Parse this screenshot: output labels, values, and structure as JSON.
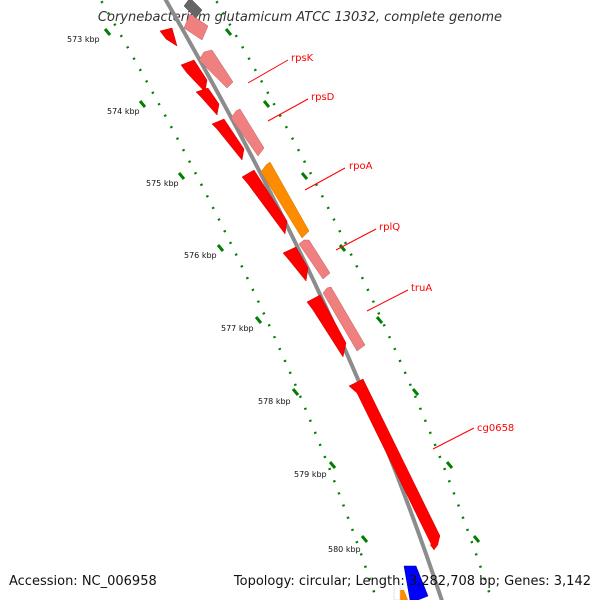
{
  "map": {
    "title": "Corynebacterium glutamicum ATCC 13032, complete genome",
    "accession_label": "Accession: NC_006958",
    "summary_label": "Topology: circular; Length: 3,282,708 bp; Genes: 3,142"
  },
  "scale": {
    "tick_labels": [
      "573 kbp",
      "574 kbp",
      "575 kbp",
      "576 kbp",
      "577 kbp",
      "578 kbp",
      "579 kbp",
      "580 kbp"
    ]
  },
  "genes": {
    "labels": [
      "rpsK",
      "rpsD",
      "rpoA",
      "rplQ",
      "truA",
      "cg0658"
    ]
  },
  "colors": {
    "backbone": "#8c8c8c",
    "gene_red": "#ff0000",
    "gene_pink": "#f08080",
    "gene_orange": "#ff8c00",
    "gene_blue": "#0000ff",
    "gene_gray": "#666666",
    "tick_green": "#008000",
    "label_red": "#ff0000"
  }
}
